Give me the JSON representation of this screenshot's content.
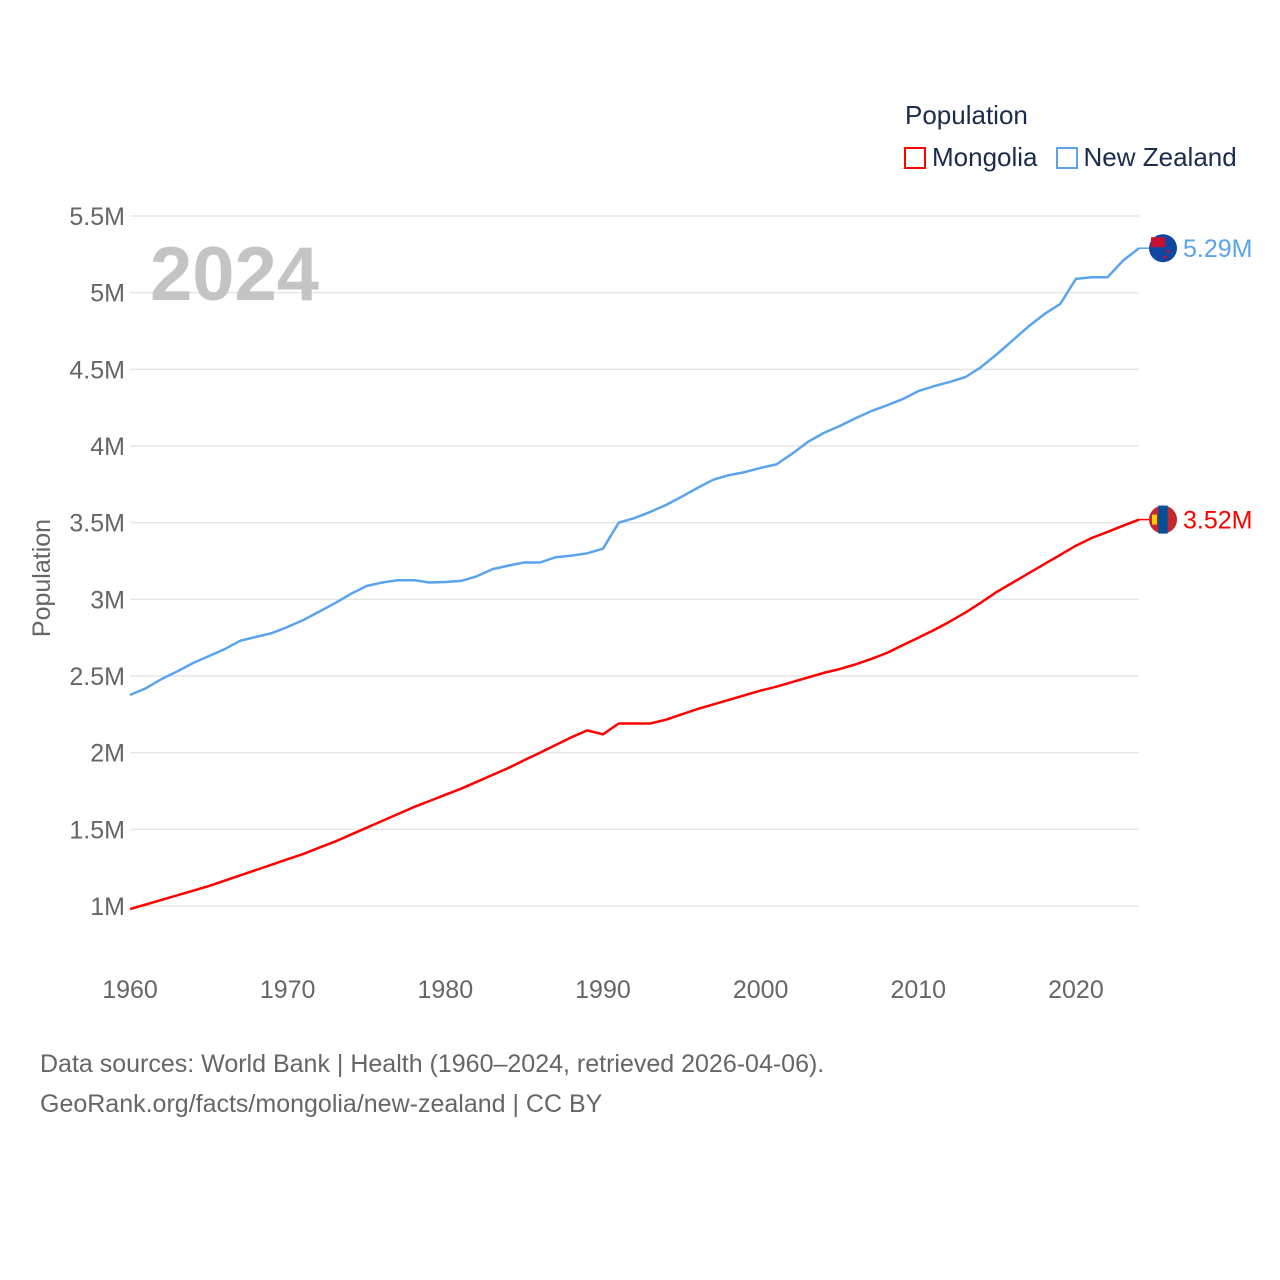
{
  "chart_data": {
    "type": "line",
    "title": "Population",
    "ylabel": "Population",
    "xlabel": "",
    "year_label": "2024",
    "ylim": [
      0.7,
      5.5
    ],
    "xlim": [
      1960,
      2024
    ],
    "yticks": [
      1,
      1.5,
      2,
      2.5,
      3,
      3.5,
      4,
      4.5,
      5,
      5.5
    ],
    "ytick_labels": [
      "1M",
      "1.5M",
      "2M",
      "2.5M",
      "3M",
      "3.5M",
      "4M",
      "4.5M",
      "5M",
      "5.5M"
    ],
    "xticks": [
      1960,
      1970,
      1980,
      1990,
      2000,
      2010,
      2020
    ],
    "xtick_labels": [
      "1960",
      "1970",
      "1980",
      "1990",
      "2000",
      "2010",
      "2020"
    ],
    "grid": true,
    "legend_placement": "top-right",
    "unit": "millions",
    "series": [
      {
        "name": "Mongolia",
        "color": "#ff0000",
        "end_label": "3.52M",
        "flag": "mongolia-flag",
        "start_year": 1960,
        "values": [
          0.98,
          1.01,
          1.04,
          1.07,
          1.1,
          1.13,
          1.165,
          1.2,
          1.235,
          1.27,
          1.305,
          1.34,
          1.38,
          1.42,
          1.465,
          1.51,
          1.555,
          1.6,
          1.645,
          1.685,
          1.725,
          1.765,
          1.81,
          1.855,
          1.9,
          1.95,
          2.0,
          2.05,
          2.1,
          2.145,
          2.12,
          2.19,
          2.19,
          2.19,
          2.215,
          2.25,
          2.285,
          2.315,
          2.345,
          2.375,
          2.405,
          2.43,
          2.46,
          2.49,
          2.52,
          2.545,
          2.575,
          2.61,
          2.65,
          2.7,
          2.75,
          2.8,
          2.855,
          2.915,
          2.98,
          3.05,
          3.11,
          3.17,
          3.23,
          3.29,
          3.35,
          3.4,
          3.44,
          3.48,
          3.52
        ]
      },
      {
        "name": "New Zealand",
        "color": "#5ba4ec",
        "end_label": "5.29M",
        "flag": "new-zealand-flag",
        "start_year": 1960,
        "values": [
          2.376,
          2.42,
          2.48,
          2.53,
          2.585,
          2.63,
          2.675,
          2.73,
          2.755,
          2.78,
          2.82,
          2.865,
          2.92,
          2.975,
          3.035,
          3.087,
          3.11,
          3.125,
          3.125,
          3.11,
          3.113,
          3.12,
          3.15,
          3.197,
          3.22,
          3.24,
          3.24,
          3.275,
          3.285,
          3.3,
          3.33,
          3.5,
          3.53,
          3.57,
          3.615,
          3.67,
          3.727,
          3.78,
          3.81,
          3.83,
          3.857,
          3.88,
          3.95,
          4.027,
          4.085,
          4.13,
          4.18,
          4.227,
          4.265,
          4.305,
          4.358,
          4.39,
          4.418,
          4.45,
          4.516,
          4.6,
          4.69,
          4.78,
          4.86,
          4.926,
          5.09,
          5.1,
          5.1,
          5.21,
          5.29
        ]
      }
    ]
  },
  "footer": {
    "line1": "Data sources: World Bank | Health (1960–2024, retrieved 2026-04-06).",
    "line2": "GeoRank.org/facts/mongolia/new-zealand | CC BY"
  }
}
